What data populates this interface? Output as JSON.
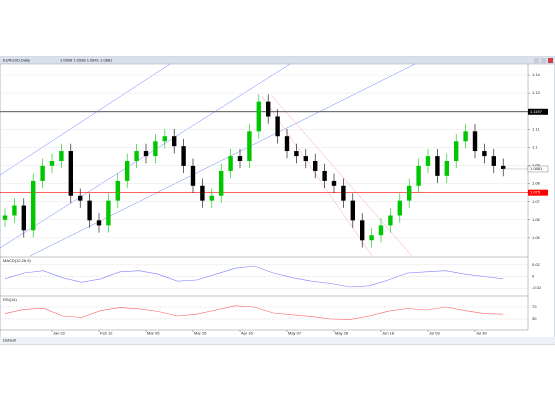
{
  "chart_data": {
    "type": "candlestick",
    "title": "EURUSD,Daily",
    "ohlc_label": "1.0898 1.0938 1.0841 1.0881",
    "categories": [
      null,
      null,
      null,
      null,
      null,
      "Jan 22",
      null,
      null,
      null,
      null,
      "Feb 12",
      null,
      null,
      null,
      null,
      "Mar 05",
      null,
      null,
      null,
      null,
      "Mar 26",
      null,
      null,
      null,
      null,
      "Apr 16",
      null,
      null,
      null,
      null,
      "May 07",
      null,
      null,
      null,
      null,
      "May 28",
      null,
      null,
      null,
      null,
      "Jun 18",
      null,
      null,
      null,
      null,
      "Jul 09",
      null,
      null,
      null,
      null,
      "Jul 30",
      null,
      null,
      null
    ],
    "open": [
      1.06,
      1.0624,
      1.0679,
      1.0542,
      1.0815,
      1.0898,
      1.0925,
      1.098,
      1.0733,
      1.0706,
      1.0597,
      1.0569,
      1.0706,
      1.0815,
      1.0925,
      1.098,
      1.0952,
      1.1034,
      1.1062,
      1.1007,
      1.0898,
      1.0788,
      1.0706,
      1.0733,
      1.087,
      1.0952,
      1.0925,
      1.1089,
      1.1253,
      1.1171,
      1.1062,
      1.098,
      1.0952,
      1.0925,
      1.087,
      1.0815,
      1.0788,
      1.0706,
      1.0597,
      1.0487,
      1.0515,
      1.0569,
      1.0624,
      1.0706,
      1.0788,
      1.0898,
      1.0952,
      1.0843,
      1.0925,
      1.1034,
      1.1089,
      1.098,
      1.0952,
      1.0898
    ],
    "high": [
      1.0664,
      1.0719,
      1.0719,
      1.0855,
      1.0938,
      1.0965,
      1.102,
      1.102,
      1.0773,
      1.0746,
      1.0637,
      1.0746,
      1.0855,
      1.0965,
      1.102,
      1.102,
      1.1074,
      1.1102,
      1.1102,
      1.1047,
      1.0938,
      1.0828,
      1.0773,
      1.091,
      1.0992,
      1.0992,
      1.1129,
      1.1293,
      1.1293,
      1.1211,
      1.1102,
      1.102,
      1.0992,
      1.0965,
      1.091,
      1.0855,
      1.0828,
      1.0746,
      1.0637,
      1.0555,
      1.0609,
      1.0664,
      1.0746,
      1.0828,
      1.0938,
      1.0992,
      1.0992,
      1.0965,
      1.1074,
      1.1129,
      1.1129,
      1.102,
      1.0992,
      1.0938
    ],
    "low": [
      1.056,
      1.0584,
      1.0502,
      1.0502,
      1.0775,
      1.0858,
      1.0885,
      1.0693,
      1.0666,
      1.0557,
      1.0529,
      1.0529,
      1.0666,
      1.0775,
      1.0885,
      1.0912,
      1.0912,
      1.0994,
      1.0967,
      1.0858,
      1.0748,
      1.0666,
      1.0666,
      1.0693,
      1.083,
      1.0885,
      1.0885,
      1.1049,
      1.1131,
      1.1022,
      1.094,
      1.0912,
      1.0885,
      1.083,
      1.0775,
      1.0748,
      1.0666,
      1.0557,
      1.0447,
      1.0447,
      1.0475,
      1.0529,
      1.0584,
      1.0666,
      1.0748,
      1.0858,
      1.0803,
      1.0803,
      1.0885,
      1.0994,
      1.094,
      1.0912,
      1.0858,
      1.0841
    ],
    "close": [
      1.0624,
      1.0679,
      1.0542,
      1.0815,
      1.0898,
      1.0925,
      1.098,
      1.0733,
      1.0706,
      1.0597,
      1.0569,
      1.0706,
      1.0815,
      1.0925,
      1.098,
      1.0952,
      1.1034,
      1.1062,
      1.1007,
      1.0898,
      1.0788,
      1.0706,
      1.0733,
      1.087,
      1.0952,
      1.0925,
      1.1089,
      1.1253,
      1.1171,
      1.1062,
      1.098,
      1.0952,
      1.0925,
      1.087,
      1.0815,
      1.0788,
      1.0706,
      1.0597,
      1.0487,
      1.0515,
      1.0569,
      1.0624,
      1.0706,
      1.0788,
      1.0898,
      1.0952,
      1.0843,
      1.0925,
      1.1034,
      1.1089,
      1.098,
      1.0952,
      1.0898,
      1.0881
    ],
    "up_color": "#00c800",
    "down_color": "#000000",
    "ylim": [
      1.04,
      1.145
    ],
    "yticks": [
      1.05,
      1.06,
      1.07,
      1.08,
      1.09,
      1.1,
      1.11,
      1.12,
      1.13,
      1.14
    ],
    "levels": [
      {
        "value": 1.1197,
        "color": "#000000"
      },
      {
        "value": 1.075,
        "color": "#ff0000"
      }
    ],
    "indicators": [
      {
        "name": "MACD(12,26,9)",
        "color": "#8080ff",
        "values": [
          -0.004,
          0.006,
          0.01,
          -0.002,
          -0.01,
          -0.004,
          0.008,
          0.01,
          0.004,
          -0.008,
          -0.006,
          0.004,
          0.014,
          0.018,
          0.006,
          -0.002,
          -0.008,
          -0.012,
          -0.018,
          -0.016,
          -0.006,
          0.006,
          0.008,
          0.01,
          0.004,
          0.0,
          -0.004
        ],
        "ylim": [
          -0.03,
          0.03
        ],
        "yticks": [
          -0.02,
          0,
          0.02
        ]
      },
      {
        "name": "RSI(14)",
        "color": "#ff6060",
        "values": [
          48,
          62,
          66,
          40,
          35,
          58,
          68,
          64,
          55,
          40,
          46,
          60,
          74,
          70,
          50,
          44,
          38,
          30,
          28,
          40,
          56,
          65,
          60,
          70,
          58,
          48,
          46
        ],
        "ylim": [
          0,
          100
        ],
        "yticks": [
          30,
          70
        ]
      }
    ],
    "status": "Default"
  }
}
